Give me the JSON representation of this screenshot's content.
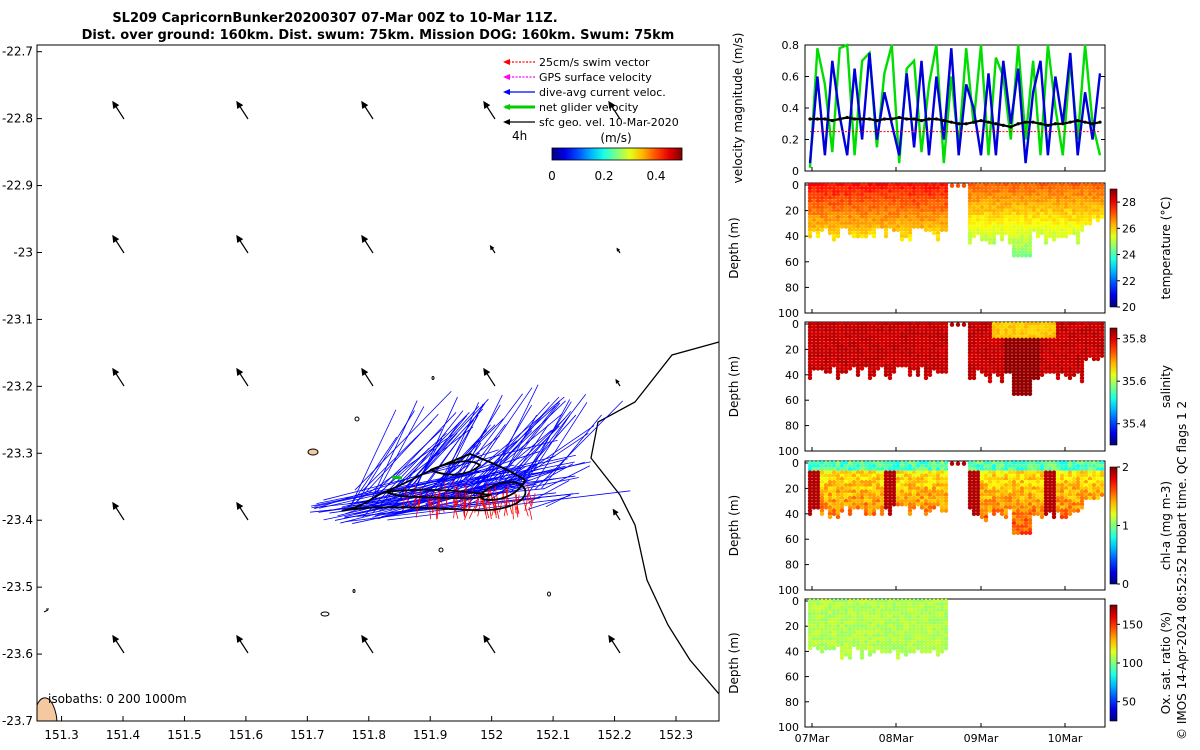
{
  "title": {
    "line1": "SL209 CapricornBunker20200307 07-Mar 00Z to 10-Mar 11Z.",
    "line2": "Dist. over ground: 160km. Dist. swum: 75km. Mission DOG: 160km. Swum: 75km"
  },
  "credit": "© IMOS 14-Apr-2024 08:52:52 Hobart time. QC flags 1  2",
  "map": {
    "legend": [
      {
        "label": "25cm/s swim vector",
        "color": "#ff0000",
        "style": "dotted"
      },
      {
        "label": "GPS surface velocity",
        "color": "#ff00ff",
        "style": "dotted"
      },
      {
        "label": "dive-avg current veloc.",
        "color": "#0000ff",
        "style": "solid"
      },
      {
        "label": "net glider velocity",
        "color": "#00cc00",
        "style": "thick"
      },
      {
        "label": "sfc geo. vel. 10-Mar-2020",
        "color": "#000000",
        "style": "solid"
      }
    ],
    "time_marker": "4h",
    "colorbar": {
      "unit": "(m/s)",
      "ticks": [
        "0",
        "0.2",
        "0.4"
      ],
      "range": [
        0,
        0.5
      ]
    },
    "isobaths_label": "isobaths: 0   200  1000m",
    "xticks": [
      "151.3",
      "151.4",
      "151.5",
      "151.6",
      "151.7",
      "151.8",
      "151.9",
      "152",
      "152.1",
      "152.2",
      "152.3"
    ],
    "yticks": [
      "-22.7",
      "-22.8",
      "-22.9",
      "-23",
      "-23.1",
      "-23.2",
      "-23.3",
      "-23.4",
      "-23.5",
      "-23.6",
      "-23.7"
    ],
    "xlim": [
      151.26,
      152.37
    ],
    "ylim": [
      -23.7,
      -22.69
    ]
  },
  "chart_data": [
    {
      "type": "line",
      "panel": "velocity magnitude",
      "ylabel": "velocity magnitude (m/s)",
      "ylim": [
        0,
        0.8
      ],
      "yticks": [
        "0",
        "0.2",
        "0.4",
        "0.6",
        "0.8"
      ],
      "series": [
        {
          "color": "#00dd00",
          "values": [
            0.02,
            0.78,
            0.55,
            0.12,
            0.78,
            0.8,
            0.1,
            0.7,
            0.75,
            0.15,
            0.62,
            0.8,
            0.05,
            0.65,
            0.7,
            0.12,
            0.55,
            0.8,
            0.05,
            0.6,
            0.15,
            0.78,
            0.3,
            0.8,
            0.1,
            0.72,
            0.6,
            0.2,
            0.8,
            0.2,
            0.7,
            0.1,
            0.8,
            0.4,
            0.1,
            0.7,
            0.2,
            0.8,
            0.3,
            0.1
          ]
        },
        {
          "color": "#0000dd",
          "values": [
            0.05,
            0.6,
            0.1,
            0.7,
            0.35,
            0.1,
            0.65,
            0.2,
            0.75,
            0.2,
            0.5,
            0.3,
            0.1,
            0.62,
            0.15,
            0.7,
            0.1,
            0.6,
            0.2,
            0.78,
            0.1,
            0.55,
            0.4,
            0.1,
            0.62,
            0.1,
            0.7,
            0.3,
            0.65,
            0.05,
            0.5,
            0.7,
            0.1,
            0.6,
            0.3,
            0.75,
            0.1,
            0.5,
            0.2,
            0.62
          ]
        },
        {
          "color": "#000000",
          "values": [
            0.33,
            0.33,
            0.33,
            0.32,
            0.33,
            0.34,
            0.33,
            0.33,
            0.33,
            0.32,
            0.33,
            0.33,
            0.34,
            0.33,
            0.33,
            0.32,
            0.33,
            0.33,
            0.32,
            0.31,
            0.3,
            0.3,
            0.31,
            0.32,
            0.31,
            0.3,
            0.29,
            0.28,
            0.3,
            0.31,
            0.31,
            0.3,
            0.29,
            0.3,
            0.3,
            0.31,
            0.32,
            0.31,
            0.3,
            0.31
          ]
        },
        {
          "color": "#ff0000",
          "values": [
            0.25,
            0.25,
            0.25,
            0.25,
            0.25,
            0.25,
            0.25,
            0.25,
            0.25,
            0.25,
            0.25,
            0.25,
            0.25,
            0.25,
            0.25,
            0.25,
            0.25,
            0.25,
            0.25,
            0.25,
            0.25,
            0.25,
            0.25,
            0.25,
            0.25,
            0.25,
            0.25,
            0.25,
            0.25,
            0.25,
            0.25,
            0.25,
            0.25,
            0.25,
            0.25,
            0.25,
            0.25,
            0.25,
            0.25,
            0.25
          ]
        }
      ]
    },
    {
      "type": "heatmap",
      "panel": "temperature",
      "ylabel": "Depth (m)",
      "cbar_label": "temperature (°C)",
      "ylim": [
        0,
        100
      ],
      "clim": [
        20,
        29
      ],
      "cbar_ticks": [
        "20",
        "22",
        "24",
        "26",
        "28"
      ]
    },
    {
      "type": "heatmap",
      "panel": "salinity",
      "ylabel": "Depth (m)",
      "cbar_label": "salinity",
      "ylim": [
        0,
        100
      ],
      "clim": [
        35.3,
        35.85
      ],
      "cbar_ticks": [
        "35.4",
        "35.6",
        "35.8"
      ]
    },
    {
      "type": "heatmap",
      "panel": "chl-a",
      "ylabel": "Depth (m)",
      "cbar_label": "chl-a (mg m-3)",
      "ylim": [
        0,
        100
      ],
      "clim": [
        0,
        2
      ],
      "cbar_ticks": [
        "0",
        "1",
        "2"
      ]
    },
    {
      "type": "heatmap",
      "panel": "oxygen",
      "ylabel": "Depth (m)",
      "cbar_label": "Ox. sat. ratio (%)",
      "ylim": [
        0,
        100
      ],
      "clim": [
        25,
        175
      ],
      "cbar_ticks": [
        "50",
        "100",
        "150"
      ]
    }
  ],
  "depth_ticks": [
    "0",
    "20",
    "40",
    "60",
    "80",
    "100"
  ],
  "time_ticks": [
    "07Mar",
    "08Mar",
    "09Mar",
    "10Mar"
  ]
}
